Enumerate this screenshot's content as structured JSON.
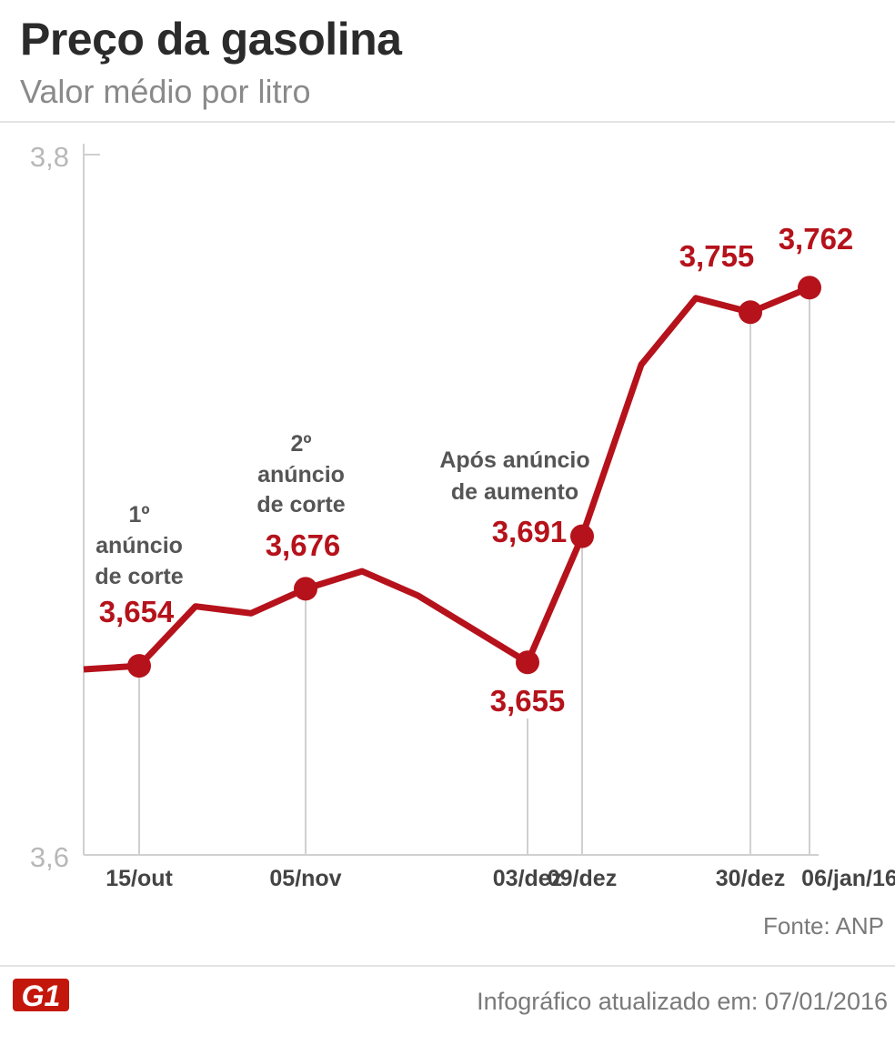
{
  "header": {
    "title": "Preço da gasolina",
    "subtitle": "Valor médio por litro"
  },
  "chart_data": {
    "type": "line",
    "title": "Preço da gasolina",
    "subtitle": "Valor médio por litro",
    "ylim": [
      3.6,
      3.8
    ],
    "yticks": [
      {
        "value": 3.8,
        "label": "3,8"
      },
      {
        "value": 3.6,
        "label": "3,6"
      }
    ],
    "x_tick_labels": [
      "15/out",
      "05/nov",
      "03/dez",
      "09/dez",
      "30/dez",
      "06/jan/16"
    ],
    "x": [
      "08/out",
      "15/out",
      "22/out",
      "29/out",
      "05/nov",
      "12/nov",
      "19/nov",
      "03/dez",
      "09/dez",
      "16/dez",
      "23/dez",
      "30/dez",
      "06/jan/16"
    ],
    "series": [
      {
        "color": "#b5121b",
        "values": [
          3.653,
          3.654,
          3.671,
          3.669,
          3.676,
          3.681,
          3.674,
          3.655,
          3.691,
          3.74,
          3.759,
          3.755,
          3.762
        ]
      }
    ],
    "highlighted": [
      {
        "x": "15/out",
        "value": 3.654,
        "label": "3,654",
        "annotation": [
          "1º",
          "anúncio",
          "de corte"
        ]
      },
      {
        "x": "05/nov",
        "value": 3.676,
        "label": "3,676",
        "annotation": [
          "2º",
          "anúncio",
          "de corte"
        ]
      },
      {
        "x": "03/dez",
        "value": 3.655,
        "label": "3,655",
        "annotation": []
      },
      {
        "x": "09/dez",
        "value": 3.691,
        "label": "3,691",
        "annotation": [
          "Após anúncio",
          "de aumento"
        ]
      },
      {
        "x": "30/dez",
        "value": 3.755,
        "label": "3,755",
        "annotation": []
      },
      {
        "x": "06/jan/16",
        "value": 3.762,
        "label": "3,762",
        "annotation": []
      }
    ],
    "grid": false,
    "colors": {
      "line": "#b5121b",
      "axis": "#d0d0d0",
      "annotation": "#555555",
      "tick": "#b8b8b8"
    }
  },
  "footer": {
    "source": "Fonte: ANP",
    "logo_text": "G1",
    "updated": "Infográfico atualizado em: 07/01/2016"
  }
}
